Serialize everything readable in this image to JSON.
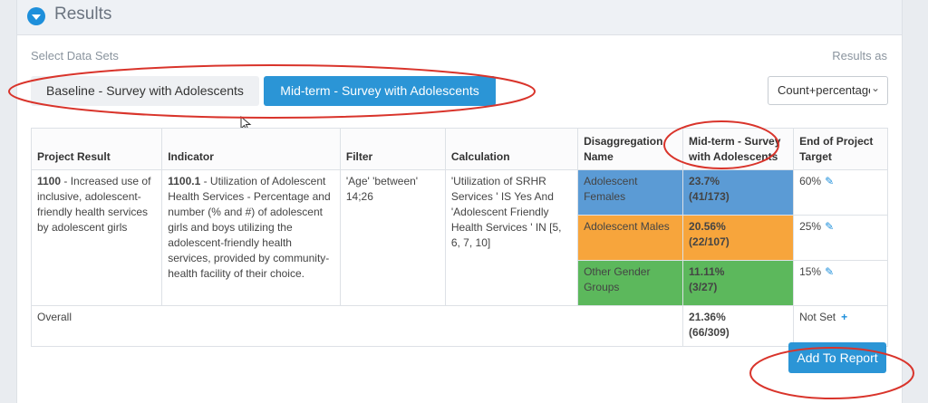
{
  "section": {
    "title": "Results"
  },
  "labels": {
    "select_data_sets": "Select Data Sets",
    "results_as": "Results as"
  },
  "data_sets": {
    "baseline": "Baseline - Survey with Adolescents",
    "midterm": "Mid-term - Survey with Adolescents"
  },
  "results_as_select": {
    "value": "Count+percentage"
  },
  "table": {
    "headers": {
      "project_result": "Project Result",
      "indicator": "Indicator",
      "filter": "Filter",
      "calculation": "Calculation",
      "disaggregation": "Disaggregation Name",
      "midterm": "Mid-term - Survey with Adolescents",
      "target": "End of Project Target"
    },
    "row": {
      "result_code": "1100",
      "result_text": " - Increased use of inclusive, adolescent-friendly health services by adolescent girls",
      "indicator_code": "1100.1",
      "indicator_text": " - Utilization of Adolescent Health Services - Percentage and number (% and #) of adolescent girls and boys utilizing the adolescent-friendly health services, provided by community-health facility of their choice.",
      "filter": "'Age' 'between' 14;26",
      "calculation": "'Utilization of SRHR Services ' IS Yes And 'Adolescent Friendly Health Services ' IN [5, 6, 7, 10]"
    },
    "disaggregations": [
      {
        "name": "Adolescent Females",
        "pct": "23.7%",
        "count": "(41/173)",
        "target": "60%",
        "color": "#5b9bd5"
      },
      {
        "name": "Adolescent Males",
        "pct": "20.56%",
        "count": "(22/107)",
        "target": "25%",
        "color": "#f7a53c"
      },
      {
        "name": "Other Gender Groups",
        "pct": "11.11%",
        "count": "(3/27)",
        "target": "15%",
        "color": "#5cb85c"
      }
    ],
    "overall": {
      "label": "Overall",
      "pct": "21.36%",
      "count": "(66/309)",
      "target": "Not Set"
    }
  },
  "actions": {
    "add_to_report": "Add To Report"
  },
  "icons": {
    "collapse": "chevron-down-icon",
    "edit": "pencil-icon",
    "add": "plus-icon",
    "cursor": "mouse-pointer-icon"
  },
  "colors": {
    "accent": "#2b95d6",
    "annotation": "#d9342b"
  }
}
